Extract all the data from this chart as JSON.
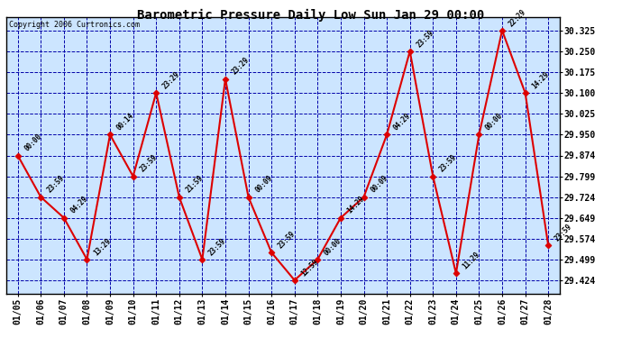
{
  "title": "Barometric Pressure Daily Low Sun Jan 29 00:00",
  "copyright": "Copyright 2006 Curtronics.com",
  "background_color": "#ffffff",
  "plot_bg_color": "#cce5ff",
  "grid_color": "#0000aa",
  "line_color": "#dd0000",
  "marker_color": "#dd0000",
  "dates": [
    "01/05",
    "01/06",
    "01/07",
    "01/08",
    "01/09",
    "01/10",
    "01/11",
    "01/12",
    "01/13",
    "01/14",
    "01/15",
    "01/16",
    "01/17",
    "01/18",
    "01/19",
    "01/20",
    "01/21",
    "01/22",
    "01/23",
    "01/24",
    "01/25",
    "01/26",
    "01/27",
    "01/28"
  ],
  "x_indices": [
    0,
    1,
    2,
    3,
    4,
    5,
    6,
    7,
    8,
    9,
    10,
    11,
    12,
    13,
    14,
    15,
    16,
    17,
    18,
    19,
    20,
    21,
    22,
    23
  ],
  "values": [
    29.874,
    29.724,
    29.649,
    29.499,
    29.949,
    29.799,
    30.1,
    29.724,
    29.499,
    30.15,
    29.724,
    29.524,
    29.424,
    29.499,
    29.649,
    29.724,
    29.949,
    30.25,
    29.799,
    29.449,
    29.949,
    30.325,
    30.1,
    29.549
  ],
  "time_labels": [
    "00:00",
    "23:59",
    "04:29",
    "13:29",
    "00:14",
    "23:59",
    "23:29",
    "21:59",
    "23:59",
    "23:29",
    "00:09",
    "23:59",
    "12:59",
    "00:00",
    "14:29",
    "00:09",
    "04:29",
    "23:59",
    "23:59",
    "11:29",
    "00:00",
    "22:29",
    "14:29",
    "23:59"
  ],
  "ylim": [
    29.374,
    30.374
  ],
  "yticks": [
    29.424,
    29.499,
    29.574,
    29.649,
    29.724,
    29.799,
    29.874,
    29.95,
    30.025,
    30.1,
    30.175,
    30.25,
    30.325
  ],
  "ytick_labels": [
    "29.424",
    "29.499",
    "29.574",
    "29.649",
    "29.724",
    "29.799",
    "29.874",
    "29.950",
    "30.025",
    "30.100",
    "30.175",
    "30.250",
    "30.325"
  ]
}
